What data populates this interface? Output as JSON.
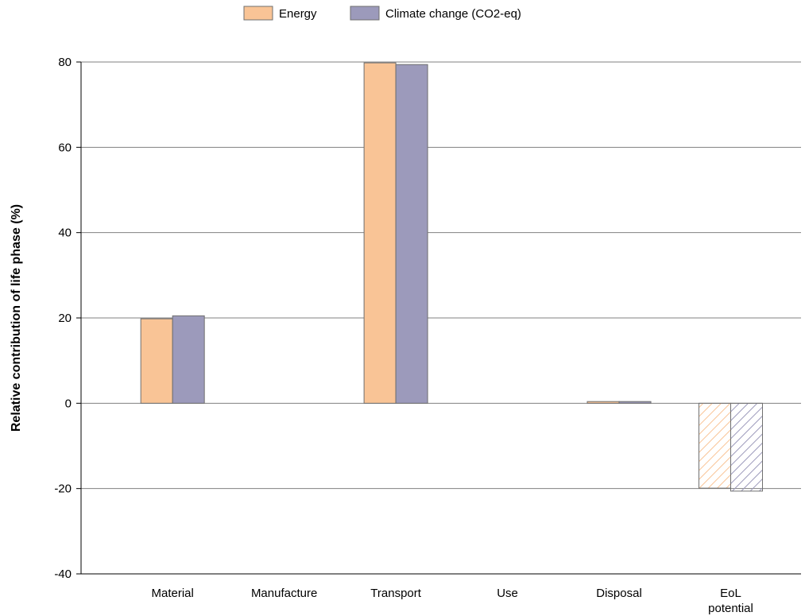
{
  "chart_data": {
    "type": "bar",
    "title": "",
    "xlabel": "",
    "ylabel": "Relative contribution of life phase (%)",
    "ylim": [
      -40,
      80
    ],
    "yticks": [
      80,
      60,
      40,
      20,
      0,
      -20,
      -40
    ],
    "grid": true,
    "legend_position": "top-center",
    "categories": [
      [
        "Material"
      ],
      [
        "Manufacture"
      ],
      [
        "Transport"
      ],
      [
        "Use"
      ],
      [
        "Disposal"
      ],
      [
        "EoL",
        "potential"
      ]
    ],
    "series": [
      {
        "name": "Energy",
        "color": "#f9c496",
        "values": [
          19.8,
          0,
          79.8,
          0,
          0.4,
          -19.9
        ]
      },
      {
        "name": "Climate change (CO2-eq)",
        "color": "#9c9abb",
        "values": [
          20.5,
          0,
          79.4,
          0,
          0.4,
          -20.6
        ]
      }
    ],
    "hatched_categories": [
      "EoL potential"
    ]
  }
}
